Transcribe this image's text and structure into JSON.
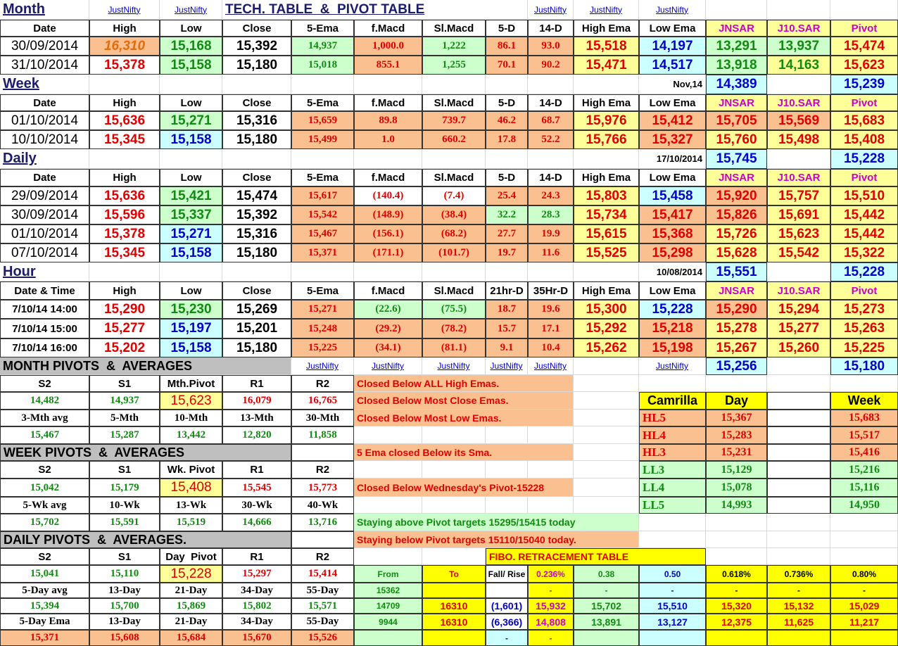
{
  "rows": [
    [
      "Month",
      "JustNifty",
      "JustNifty",
      "TECH. TABLE  &  PIVOT TABLE",
      null,
      null,
      null,
      null,
      "JustNifty",
      "JustNifty",
      "JustNifty",
      null,
      null,
      null
    ],
    [
      "Date",
      "High",
      "Low",
      "Close",
      "5-Ema",
      "f.Macd",
      "Sl.Macd",
      "5-D",
      "14-D",
      "High Ema",
      "Low Ema",
      "JNSAR",
      "J10.SAR",
      "Pivot"
    ],
    [
      "30/09/2014",
      "16,310",
      "15,168",
      "15,392",
      "14,937",
      "1,000.0",
      "1,222",
      "86.1",
      "93.0",
      "15,518",
      "14,197",
      "13,291",
      "13,937",
      "15,474"
    ],
    [
      "31/10/2014",
      "15,378",
      "15,158",
      "15,180",
      "15,018",
      "855.1",
      "1,255",
      "70.1",
      "90.2",
      "15,471",
      "14,517",
      "13,918",
      "14,163",
      "15,623"
    ],
    [
      "Week",
      null,
      null,
      null,
      null,
      null,
      null,
      null,
      null,
      null,
      "Nov,14",
      "14,389",
      null,
      "15,239"
    ],
    [
      "Date",
      "High",
      "Low",
      "Close",
      "5-Ema",
      "f.Macd",
      "Sl.Macd",
      "5-D",
      "14-D",
      "High Ema",
      "Low Ema",
      "JNSAR",
      "J10.SAR",
      "Pivot"
    ],
    [
      "01/10/2014",
      "15,636",
      "15,271",
      "15,316",
      "15,659",
      "89.8",
      "739.7",
      "46.2",
      "68.7",
      "15,976",
      "15,412",
      "15,705",
      "15,569",
      "15,683"
    ],
    [
      "10/10/2014",
      "15,345",
      "15,158",
      "15,180",
      "15,499",
      "1.0",
      "660.2",
      "17.8",
      "52.2",
      "15,766",
      "15,327",
      "15,760",
      "15,498",
      "15,408"
    ],
    [
      "Daily",
      null,
      null,
      null,
      null,
      null,
      null,
      null,
      null,
      null,
      "17/10/2014",
      "15,745",
      null,
      "15,228"
    ],
    [
      "Date",
      "High",
      "Low",
      "Close",
      "5-Ema",
      "f.Macd",
      "Sl.Macd",
      "5-D",
      "14-D",
      "High Ema",
      "Low Ema",
      "JNSAR",
      "J10.SAR",
      "Pivot"
    ],
    [
      "29/09/2014",
      "15,636",
      "15,421",
      "15,474",
      "15,617",
      "(140.4)",
      "(7.4)",
      "25.4",
      "24.3",
      "15,803",
      "15,458",
      "15,920",
      "15,757",
      "15,510"
    ],
    [
      "30/09/2014",
      "15,596",
      "15,337",
      "15,392",
      "15,542",
      "(148.9)",
      "(38.4)",
      "32.2",
      "28.3",
      "15,734",
      "15,417",
      "15,826",
      "15,691",
      "15,442"
    ],
    [
      "01/10/2014",
      "15,378",
      "15,271",
      "15,316",
      "15,467",
      "(156.1)",
      "(68.2)",
      "27.7",
      "19.9",
      "15,615",
      "15,368",
      "15,726",
      "15,623",
      "15,442"
    ],
    [
      "07/10/2014",
      "15,345",
      "15,158",
      "15,180",
      "15,371",
      "(171.1)",
      "(101.7)",
      "19.7",
      "11.6",
      "15,525",
      "15,298",
      "15,628",
      "15,542",
      "15,322"
    ],
    [
      "Hour",
      null,
      null,
      null,
      null,
      null,
      null,
      null,
      null,
      null,
      "10/08/2014",
      "15,551",
      null,
      "15,228"
    ],
    [
      "Date & Time",
      "High",
      "Low",
      "Close",
      "5-Ema",
      "f.Macd",
      "Sl.Macd",
      "21hr-D",
      "35Hr-D",
      "High Ema",
      "Low Ema",
      "JNSAR",
      "J10.SAR",
      "Pivot"
    ],
    [
      "7/10/14 14:00",
      "15,290",
      "15,230",
      "15,269",
      "15,271",
      "(22.6)",
      "(75.5)",
      "18.7",
      "19.6",
      "15,300",
      "15,228",
      "15,290",
      "15,294",
      "15,273"
    ],
    [
      "7/10/14 15:00",
      "15,277",
      "15,197",
      "15,201",
      "15,248",
      "(29.2)",
      "(78.2)",
      "15.7",
      "17.1",
      "15,292",
      "15,218",
      "15,278",
      "15,277",
      "15,263"
    ],
    [
      "7/10/14 16:00",
      "15,202",
      "15,158",
      "15,180",
      "15,225",
      "(34.1)",
      "(81.1)",
      "9.1",
      "10.4",
      "15,262",
      "15,198",
      "15,267",
      "15,260",
      "15,225"
    ],
    [
      "MONTH PIVOTS  &  AVERAGES",
      null,
      null,
      null,
      "JustNifty",
      "JustNifty",
      "JustNifty",
      "JustNifty",
      "JustNifty",
      null,
      "JustNifty",
      "15,256",
      null,
      "15,180"
    ],
    [
      "S2",
      "S1",
      "Mth.Pivot",
      "R1",
      "R2",
      "Closed Below ALL High Emas.",
      null,
      null,
      null,
      null,
      null,
      null,
      null,
      null
    ],
    [
      "14,482",
      "14,937",
      "15,623",
      "16,079",
      "16,765",
      "Closed Below Most Close Emas.",
      null,
      null,
      null,
      null,
      "Camrilla",
      "Day",
      null,
      "Week"
    ],
    [
      "3-Mth avg",
      "5-Mth",
      "10-Mth",
      "13-Mth",
      "30-Mth",
      "Closed Below Most Low Emas.",
      null,
      null,
      null,
      null,
      "HL5",
      "15,367",
      null,
      "15,683"
    ],
    [
      "15,467",
      "15,287",
      "13,442",
      "12,820",
      "11,858",
      null,
      null,
      null,
      null,
      null,
      "HL4",
      "15,283",
      null,
      "15,517"
    ],
    [
      "WEEK PIVOTS  &  AVERAGES",
      null,
      null,
      null,
      null,
      "5 Ema closed Below its Sma.",
      null,
      null,
      null,
      null,
      "HL3",
      "15,231",
      null,
      "15,416"
    ],
    [
      "S2",
      "S1",
      "Wk. Pivot",
      "R1",
      "R2",
      null,
      null,
      null,
      null,
      null,
      "LL3",
      "15,129",
      null,
      "15,216"
    ],
    [
      "15,042",
      "15,179",
      "15,408",
      "15,545",
      "15,773",
      "Closed Below Wednesday's Pivot-15228",
      null,
      null,
      null,
      null,
      "LL4",
      "15,078",
      null,
      "15,116"
    ],
    [
      "5-Wk avg",
      "10-Wk",
      "13-Wk",
      "30-Wk",
      "40-Wk",
      null,
      null,
      null,
      null,
      null,
      "LL5",
      "14,993",
      null,
      "14,950"
    ],
    [
      "15,702",
      "15,591",
      "15,519",
      "14,666",
      "13,716",
      "Staying above Pivot targets 15295/15415 today",
      null,
      null,
      null,
      null,
      null,
      null,
      null,
      null
    ],
    [
      "DAILY PIVOTS  &  AVERAGES.",
      null,
      null,
      null,
      null,
      "Staying below Pivot targets 15110/15040 today.",
      null,
      null,
      null,
      null,
      null,
      null,
      null,
      null
    ],
    [
      "S2",
      "S1",
      "Day  Pivot",
      "R1",
      "R2",
      null,
      null,
      "FIBO. RETRACEMENT TABLE",
      null,
      null,
      null,
      null,
      null,
      null
    ],
    [
      "15,041",
      "15,110",
      "15,228",
      "15,297",
      "15,414",
      "From",
      "To",
      "Fall/ Rise",
      "0.236%",
      "0.38",
      "0.50",
      "0.618%",
      "0.736%",
      "0.80%"
    ],
    [
      "5-Day avg",
      "13-Day",
      "21-Day",
      "34-Day",
      "55-Day",
      "15362",
      null,
      null,
      "-",
      "-",
      "-",
      "-",
      "-",
      "-"
    ],
    [
      "15,394",
      "15,700",
      "15,869",
      "15,802",
      "15,571",
      "14709",
      "16310",
      "(1,601)",
      "15,932",
      "15,702",
      "15,510",
      "15,320",
      "15,132",
      "15,029"
    ],
    [
      "5-Day Ema",
      "13-Day",
      "21-Day",
      "34-Day",
      "55-Day",
      "9944",
      "16310",
      "(6,366)",
      "14,808",
      "13,891",
      "13,127",
      "12,375",
      "11,625",
      "11,217"
    ],
    [
      "15,371",
      "15,608",
      "15,684",
      "15,670",
      "15,526",
      null,
      null,
      "-",
      "-",
      null,
      null,
      null,
      null,
      null
    ]
  ]
}
